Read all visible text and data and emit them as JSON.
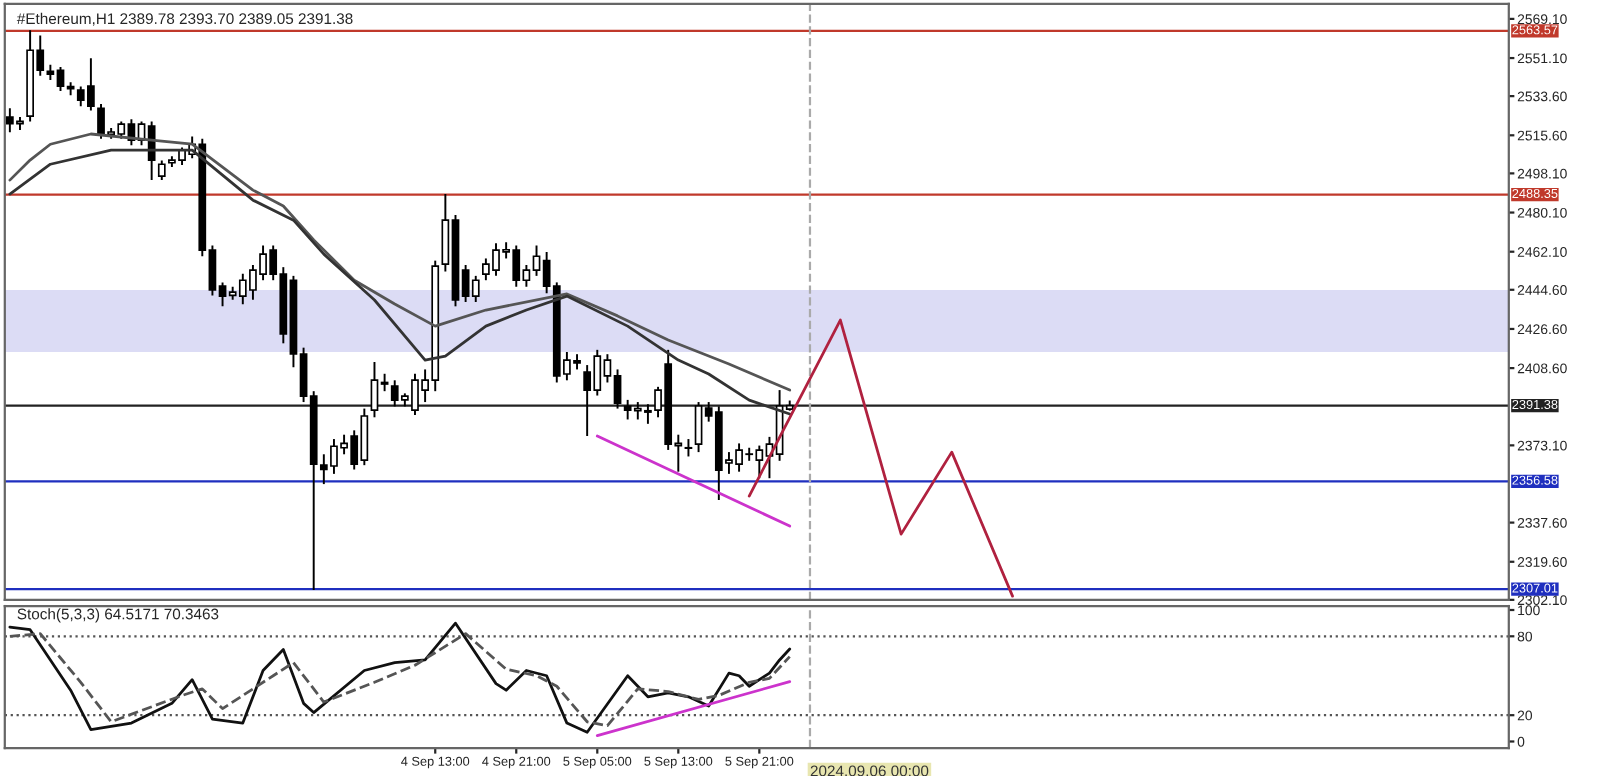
{
  "chart_data": [
    {
      "type": "candlestick",
      "title": "#Ethereum,H1 2389.78 2393.70 2389.05 2391.38",
      "x": [
        "2024-09-02T19:00",
        "2024-09-02T20:00",
        "2024-09-02T21:00",
        "2024-09-02T22:00",
        "2024-09-02T23:00",
        "2024-09-03T00:00",
        "2024-09-03T01:00",
        "2024-09-03T02:00",
        "2024-09-03T03:00",
        "2024-09-03T04:00",
        "2024-09-03T05:00",
        "2024-09-03T06:00",
        "2024-09-03T07:00",
        "2024-09-03T08:00",
        "2024-09-03T09:00",
        "2024-09-03T10:00",
        "2024-09-03T11:00",
        "2024-09-03T12:00",
        "2024-09-03T13:00",
        "2024-09-03T14:00",
        "2024-09-03T15:00",
        "2024-09-03T16:00",
        "2024-09-03T17:00",
        "2024-09-03T18:00",
        "2024-09-03T19:00",
        "2024-09-03T20:00",
        "2024-09-03T21:00",
        "2024-09-03T22:00",
        "2024-09-03T23:00",
        "2024-09-04T00:00",
        "2024-09-04T01:00",
        "2024-09-04T02:00",
        "2024-09-04T03:00",
        "2024-09-04T04:00",
        "2024-09-04T05:00",
        "2024-09-04T06:00",
        "2024-09-04T07:00",
        "2024-09-04T08:00",
        "2024-09-04T09:00",
        "2024-09-04T10:00",
        "2024-09-04T11:00",
        "2024-09-04T12:00",
        "2024-09-04T13:00",
        "2024-09-04T14:00",
        "2024-09-04T15:00",
        "2024-09-04T16:00",
        "2024-09-04T17:00",
        "2024-09-04T18:00",
        "2024-09-04T19:00",
        "2024-09-04T20:00",
        "2024-09-04T21:00",
        "2024-09-04T22:00",
        "2024-09-04T23:00",
        "2024-09-05T00:00",
        "2024-09-05T01:00",
        "2024-09-05T02:00",
        "2024-09-05T03:00",
        "2024-09-05T04:00",
        "2024-09-05T05:00",
        "2024-09-05T06:00",
        "2024-09-05T07:00",
        "2024-09-05T08:00",
        "2024-09-05T09:00",
        "2024-09-05T10:00",
        "2024-09-05T11:00",
        "2024-09-05T12:00",
        "2024-09-05T13:00",
        "2024-09-05T14:00",
        "2024-09-05T15:00",
        "2024-09-05T16:00",
        "2024-09-05T17:00",
        "2024-09-05T18:00",
        "2024-09-05T19:00",
        "2024-09-05T20:00",
        "2024-09-05T21:00",
        "2024-09-05T22:00",
        "2024-09-05T23:00",
        "2024-09-06T00:00"
      ],
      "ohlc": [
        [
          2524,
          2528,
          2517,
          2521
        ],
        [
          2521,
          2524,
          2518,
          2522
        ],
        [
          2524.4,
          2563.9,
          2522,
          2554.7
        ],
        [
          2554.7,
          2561.5,
          2543,
          2545.5
        ],
        [
          2545,
          2548,
          2541,
          2543.7
        ],
        [
          2545.5,
          2547,
          2536,
          2538.2
        ],
        [
          2538,
          2540,
          2534,
          2537
        ],
        [
          2536.4,
          2538,
          2529,
          2531.8
        ],
        [
          2538.2,
          2551,
          2527,
          2529.0
        ],
        [
          2528,
          2530,
          2514,
          2516.2
        ],
        [
          2516,
          2519,
          2514,
          2517.1
        ],
        [
          2516.2,
          2522,
          2514,
          2520.7
        ],
        [
          2520.7,
          2523,
          2511,
          2513.4
        ],
        [
          2513.4,
          2522,
          2511,
          2520.7
        ],
        [
          2519.8,
          2522,
          2495.0,
          2504.2
        ],
        [
          2496.8,
          2504,
          2495,
          2502.3
        ],
        [
          2503,
          2506,
          2501,
          2504.2
        ],
        [
          2504.2,
          2510,
          2502,
          2508.8
        ],
        [
          2506.9,
          2515,
          2505,
          2511.5
        ],
        [
          2511.5,
          2514,
          2460,
          2462.8
        ],
        [
          2462.8,
          2465,
          2442,
          2444.5
        ],
        [
          2446.3,
          2448,
          2437,
          2441.7
        ],
        [
          2442,
          2446,
          2440,
          2443.5
        ],
        [
          2441.7,
          2452,
          2438,
          2449.0
        ],
        [
          2444.5,
          2456,
          2440,
          2453.6
        ],
        [
          2451.8,
          2465,
          2449,
          2461.0
        ],
        [
          2462.8,
          2465,
          2449,
          2451.8
        ],
        [
          2451.8,
          2455,
          2420,
          2424.3
        ],
        [
          2449,
          2451,
          2409,
          2415.1
        ],
        [
          2415.1,
          2418,
          2393,
          2395.7
        ],
        [
          2395.7,
          2398,
          2306.6,
          2364.5
        ],
        [
          2364,
          2369,
          2355.3,
          2362
        ],
        [
          2363.6,
          2376,
          2360,
          2372.7
        ],
        [
          2372,
          2378,
          2369,
          2374
        ],
        [
          2377.4,
          2380,
          2362,
          2364.5
        ],
        [
          2366.3,
          2390,
          2364,
          2386.6
        ],
        [
          2389.3,
          2411.4,
          2386,
          2403.1
        ],
        [
          2402,
          2406,
          2398,
          2401.3
        ],
        [
          2400.4,
          2403,
          2391,
          2393.9
        ],
        [
          2394,
          2397,
          2391,
          2395.7
        ],
        [
          2389.3,
          2406,
          2387,
          2403.1
        ],
        [
          2398.5,
          2408,
          2393,
          2403.1
        ],
        [
          2403.1,
          2458,
          2398,
          2455.5
        ],
        [
          2456.4,
          2488.6,
          2453,
          2476.6
        ],
        [
          2476.6,
          2479,
          2437,
          2439.9
        ],
        [
          2453.6,
          2456,
          2439,
          2441.7
        ],
        [
          2441.7,
          2451,
          2439,
          2449.0
        ],
        [
          2451.8,
          2459,
          2449,
          2456.4
        ],
        [
          2453.6,
          2466,
          2451,
          2462.8
        ],
        [
          2462,
          2466.5,
          2459,
          2463
        ],
        [
          2462.8,
          2465,
          2446,
          2449.0
        ],
        [
          2449,
          2456,
          2446,
          2453.6
        ],
        [
          2453.6,
          2465,
          2451,
          2460
        ],
        [
          2458,
          2462,
          2443,
          2446.3
        ],
        [
          2446.3,
          2448,
          2402,
          2405.0
        ],
        [
          2405.9,
          2416,
          2403,
          2412.3
        ],
        [
          2412,
          2415,
          2408,
          2411
        ],
        [
          2406.8,
          2410,
          2377.4,
          2398.5
        ],
        [
          2398.5,
          2417,
          2396,
          2414.1
        ],
        [
          2405,
          2415,
          2402,
          2412.3
        ],
        [
          2405,
          2408,
          2390,
          2392.5
        ],
        [
          2391,
          2394,
          2385,
          2389.3
        ],
        [
          2389,
          2393,
          2385,
          2390
        ],
        [
          2389,
          2392,
          2383,
          2388.4
        ],
        [
          2389.3,
          2400,
          2386,
          2398.5
        ],
        [
          2410.5,
          2417,
          2371,
          2373.7
        ],
        [
          2373,
          2378,
          2361,
          2374
        ],
        [
          2372,
          2376,
          2368,
          2371.8
        ],
        [
          2373.7,
          2393,
          2370,
          2391.2
        ],
        [
          2390.2,
          2393,
          2384,
          2386.6
        ],
        [
          2388.4,
          2391,
          2348,
          2361.7
        ],
        [
          2365,
          2370,
          2360,
          2366.3
        ],
        [
          2364.5,
          2374,
          2361,
          2370.9
        ],
        [
          2369,
          2372,
          2366,
          2369.1
        ],
        [
          2366.3,
          2373,
          2358,
          2370.9
        ],
        [
          2368.2,
          2377,
          2358,
          2373.7
        ],
        [
          2369.1,
          2398.5,
          2366,
          2391.2
        ],
        [
          2389.78,
          2393.7,
          2389.05,
          2391.38
        ]
      ],
      "series": [
        {
          "type": "line",
          "color": "#555555",
          "line_style": "solid",
          "x": [
            "2024-09-02T19:00",
            "2024-09-02T21:00",
            "2024-09-02T23:00",
            "2024-09-03T03:00",
            "2024-09-03T09:00",
            "2024-09-03T13:00",
            "2024-09-03T19:00",
            "2024-09-03T22:00",
            "2024-09-04T01:00",
            "2024-09-04T05:00",
            "2024-09-04T09:00",
            "2024-09-04T13:00",
            "2024-09-04T18:00",
            "2024-09-05T02:00",
            "2024-09-05T07:00",
            "2024-09-05T12:00",
            "2024-09-05T18:00",
            "2024-09-06T00:00"
          ],
          "values": [
            2495.0,
            2504.2,
            2511.5,
            2516.2,
            2513.4,
            2511.5,
            2490.4,
            2483.1,
            2467.5,
            2449.0,
            2438.1,
            2427.9,
            2435.3,
            2442.7,
            2432.6,
            2421.5,
            2410.5,
            2398.5
          ]
        },
        {
          "type": "line",
          "color": "#333333",
          "line_style": "solid",
          "x": [
            "2024-09-02T19:00",
            "2024-09-02T23:00",
            "2024-09-03T05:00",
            "2024-09-03T13:00",
            "2024-09-03T19:00",
            "2024-09-03T23:00",
            "2024-09-04T02:00",
            "2024-09-04T07:00",
            "2024-09-04T12:00",
            "2024-09-04T14:00",
            "2024-09-04T18:00",
            "2024-09-04T22:00",
            "2024-09-05T02:00",
            "2024-09-05T08:00",
            "2024-09-05T13:00",
            "2024-09-05T16:00",
            "2024-09-05T20:00",
            "2024-09-06T00:00"
          ],
          "values": [
            2488.6,
            2502.3,
            2508.8,
            2508.8,
            2485.8,
            2476.6,
            2461.0,
            2439.9,
            2412.3,
            2414.1,
            2427.9,
            2435.3,
            2441.7,
            2427.9,
            2412.3,
            2405.9,
            2393.9,
            2387.5
          ]
        },
        {
          "type": "line",
          "color": "#cc33cc",
          "line_style": "solid",
          "x": [
            "2024-09-05T05:00",
            "2024-09-06T00:00"
          ],
          "values": [
            2377.4,
            2336.0
          ]
        },
        {
          "type": "line",
          "color": "#b0213f",
          "line_style": "solid",
          "x": [
            "2024-09-05T20:00",
            "2024-09-06T05:00",
            "2024-09-06T11:00",
            "2024-09-06T16:00",
            "2024-09-06T22:00"
          ],
          "values": [
            2349.8,
            2430.7,
            2332.3,
            2370.0,
            2303.8
          ]
        }
      ],
      "xlim": [
        "2024-09-02T18:30",
        "2024-09-08T23:00"
      ],
      "ylim": [
        2302.1,
        2576
      ],
      "yticks": [
        {
          "value": 2569.1,
          "label": "2569.10"
        },
        {
          "value": 2551.1,
          "label": "2551.10"
        },
        {
          "value": 2533.6,
          "label": "2533.60"
        },
        {
          "value": 2515.6,
          "label": "2515.60"
        },
        {
          "value": 2498.1,
          "label": "2498.10"
        },
        {
          "value": 2480.1,
          "label": "2480.10"
        },
        {
          "value": 2462.1,
          "label": "2462.10"
        },
        {
          "value": 2444.6,
          "label": "2444.60"
        },
        {
          "value": 2426.6,
          "label": "2426.60"
        },
        {
          "value": 2408.6,
          "label": "2408.60"
        },
        {
          "value": 2373.1,
          "label": "2373.10"
        },
        {
          "value": 2337.6,
          "label": "2337.60"
        },
        {
          "value": 2319.6,
          "label": "2319.60"
        },
        {
          "value": 2302.1,
          "label": "2302.10"
        }
      ],
      "tick_labels": "y",
      "ref_lines": [
        {
          "axis": "y",
          "value": 2563.57,
          "label": "2563.57",
          "color": "#c0392b"
        },
        {
          "axis": "y",
          "value": 2488.35,
          "label": "2488.35",
          "color": "#c0392b"
        },
        {
          "axis": "y",
          "value": 2391.38,
          "label": "2391.38",
          "color": "#222222"
        },
        {
          "axis": "y",
          "value": 2356.58,
          "label": "2356.58",
          "color": "#1f2fbf"
        },
        {
          "axis": "y",
          "value": 2307.01,
          "label": "2307.01",
          "color": "#1f2fbf"
        },
        {
          "axis": "x",
          "value": "2024-09-06T02:00",
          "color": "#aaaaaa",
          "line_style": "dashed"
        }
      ],
      "bands": [
        {
          "axis": "y",
          "from": 2416.0,
          "to": 2444.5,
          "color": "#dcdcf5"
        }
      ],
      "grid": false,
      "legend": false
    },
    {
      "type": "line",
      "title": "Stoch(5,3,3) 64.5171 70.3463",
      "series": [
        {
          "color": "#111111",
          "line_style": "solid",
          "x": [
            "2024-09-02T19:00",
            "2024-09-02T21:00",
            "2024-09-03T01:00",
            "2024-09-03T03:00",
            "2024-09-03T07:00",
            "2024-09-03T11:00",
            "2024-09-03T13:00",
            "2024-09-03T15:00",
            "2024-09-03T18:00",
            "2024-09-03T20:00",
            "2024-09-03T22:00",
            "2024-09-04T00:00",
            "2024-09-04T01:00",
            "2024-09-04T06:00",
            "2024-09-04T09:00",
            "2024-09-04T12:00",
            "2024-09-04T15:00",
            "2024-09-04T19:00",
            "2024-09-04T20:00",
            "2024-09-04T22:00",
            "2024-09-05T00:00",
            "2024-09-05T02:00",
            "2024-09-05T04:00",
            "2024-09-05T08:00",
            "2024-09-05T10:00",
            "2024-09-05T12:00",
            "2024-09-05T14:00",
            "2024-09-05T16:00",
            "2024-09-05T18:00",
            "2024-09-05T19:00",
            "2024-09-05T20:00",
            "2024-09-05T22:00",
            "2024-09-05T23:00",
            "2024-09-06T00:00"
          ],
          "values": [
            87,
            85,
            39,
            9,
            14,
            29,
            47,
            17,
            14,
            54,
            70,
            29,
            22,
            54,
            60,
            62,
            90,
            44,
            39,
            54,
            50,
            14,
            7,
            50,
            34,
            37,
            34,
            27,
            52,
            50,
            42,
            52,
            62,
            70.35
          ]
        },
        {
          "color": "#555555",
          "line_style": "dashed",
          "x": [
            "2024-09-02T19:00",
            "2024-09-02T22:00",
            "2024-09-03T02:00",
            "2024-09-03T05:00",
            "2024-09-03T12:00",
            "2024-09-03T14:00",
            "2024-09-03T16:00",
            "2024-09-03T21:00",
            "2024-09-03T23:00",
            "2024-09-04T02:00",
            "2024-09-04T07:00",
            "2024-09-04T11:00",
            "2024-09-04T16:00",
            "2024-09-04T20:00",
            "2024-09-04T23:00",
            "2024-09-05T01:00",
            "2024-09-05T04:00",
            "2024-09-05T06:00",
            "2024-09-05T09:00",
            "2024-09-05T12:00",
            "2024-09-05T15:00",
            "2024-09-05T17:00",
            "2024-09-05T20:00",
            "2024-09-05T22:00",
            "2024-09-06T00:00"
          ],
          "values": [
            80,
            82,
            45,
            15,
            35,
            40,
            25,
            50,
            60,
            30,
            45,
            58,
            82,
            55,
            50,
            42,
            15,
            12,
            40,
            38,
            32,
            35,
            45,
            48,
            64.52
          ]
        },
        {
          "color": "#cc33cc",
          "line_style": "solid",
          "x": [
            "2024-09-05T05:00",
            "2024-09-06T00:00"
          ],
          "values": [
            4.5,
            45.5
          ]
        }
      ],
      "xlim": [
        "2024-09-02T18:30",
        "2024-09-08T23:00"
      ],
      "ylim": [
        -5,
        103
      ],
      "yticks": [
        0,
        20,
        80,
        100
      ],
      "xticks": [
        {
          "value": "2024-09-04T13:00",
          "label": "4 Sep 13:00"
        },
        {
          "value": "2024-09-04T21:00",
          "label": "4 Sep 21:00"
        },
        {
          "value": "2024-09-05T05:00",
          "label": "5 Sep 05:00"
        },
        {
          "value": "2024-09-05T13:00",
          "label": "5 Sep 13:00"
        },
        {
          "value": "2024-09-05T21:00",
          "label": "5 Sep 21:00"
        }
      ],
      "ref_lines": [
        {
          "axis": "y",
          "value": 80,
          "color": "#555555",
          "line_style": "dotted"
        },
        {
          "axis": "y",
          "value": 20,
          "color": "#555555",
          "line_style": "dotted"
        },
        {
          "axis": "x",
          "value": "2024-09-06T02:00",
          "label": "2024.09.06 00:00",
          "color": "#aaaaaa",
          "line_style": "dashed"
        }
      ],
      "grid": false,
      "legend": false
    }
  ]
}
